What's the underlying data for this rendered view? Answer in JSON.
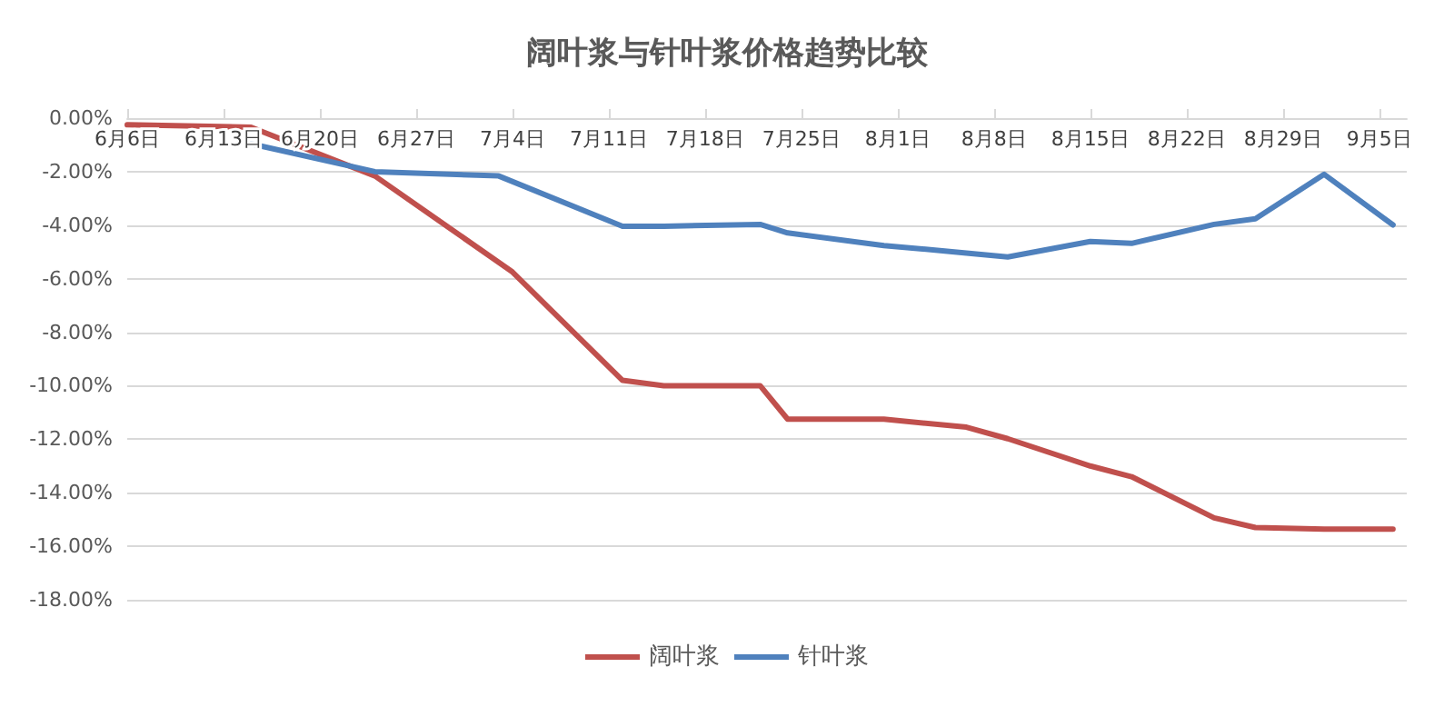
{
  "chart_data": {
    "type": "line",
    "title": "阔叶浆与针叶浆价格趋势比较",
    "series": [
      {
        "name": "阔叶浆",
        "color": "#c0504d",
        "x": [
          "--06-06",
          "--06-15",
          "--06-24",
          "--07-04",
          "--07-12",
          "--07-15",
          "--07-22",
          "--07-24",
          "--07-31",
          "--08-06",
          "--08-09",
          "--08-15",
          "--08-18",
          "--08-24",
          "--08-27",
          "--09-01",
          "--09-06"
        ],
        "values": [
          -0.25,
          -0.34,
          -2.16,
          -5.75,
          -9.8,
          -10.0,
          -10.0,
          -11.25,
          -11.25,
          -11.55,
          -11.98,
          -13.0,
          -13.4,
          -14.94,
          -15.3,
          -15.36,
          -15.36
        ]
      },
      {
        "name": "针叶浆",
        "color": "#4f81bd",
        "x": [
          "--06-15",
          "--06-24",
          "--07-03",
          "--07-12",
          "--07-15",
          "--07-22",
          "--07-24",
          "--07-31",
          "--08-06",
          "--08-09",
          "--08-15",
          "--08-18",
          "--08-24",
          "--08-27",
          "--09-01",
          "--09-06"
        ],
        "values": [
          -0.96,
          -2.0,
          -2.16,
          -4.04,
          -4.04,
          -3.97,
          -4.29,
          -4.76,
          -5.04,
          -5.19,
          -4.61,
          -4.68,
          -3.97,
          -3.76,
          -2.1,
          -3.99
        ]
      }
    ],
    "xlim": [
      "--06-06",
      "--09-07"
    ],
    "xticks": [
      {
        "value": "--06-06",
        "label": "6月6日"
      },
      {
        "value": "--06-13",
        "label": "6月13日"
      },
      {
        "value": "--06-20",
        "label": "6月20日"
      },
      {
        "value": "--06-27",
        "label": "6月27日"
      },
      {
        "value": "--07-04",
        "label": "7月4日"
      },
      {
        "value": "--07-11",
        "label": "7月11日"
      },
      {
        "value": "--07-18",
        "label": "7月18日"
      },
      {
        "value": "--07-25",
        "label": "7月25日"
      },
      {
        "value": "--08-01",
        "label": "8月1日"
      },
      {
        "value": "--08-08",
        "label": "8月8日"
      },
      {
        "value": "--08-15",
        "label": "8月15日"
      },
      {
        "value": "--08-22",
        "label": "8月22日"
      },
      {
        "value": "--08-29",
        "label": "8月29日"
      },
      {
        "value": "--09-05",
        "label": "9月5日"
      }
    ],
    "ylim": [
      -18,
      0
    ],
    "yticks": [
      {
        "value": -18,
        "label": "-18.00%"
      },
      {
        "value": -16,
        "label": "-16.00%"
      },
      {
        "value": -14,
        "label": "-14.00%"
      },
      {
        "value": -12,
        "label": "-12.00%"
      },
      {
        "value": -10,
        "label": "-10.00%"
      },
      {
        "value": -8,
        "label": "-8.00%"
      },
      {
        "value": -6,
        "label": "-6.00%"
      },
      {
        "value": -4,
        "label": "-4.00%"
      },
      {
        "value": -2,
        "label": "-2.00%"
      },
      {
        "value": 0,
        "label": "0.00%"
      }
    ],
    "grid": "y",
    "legend": "bottom",
    "marker": "none",
    "line_style": "solid"
  }
}
